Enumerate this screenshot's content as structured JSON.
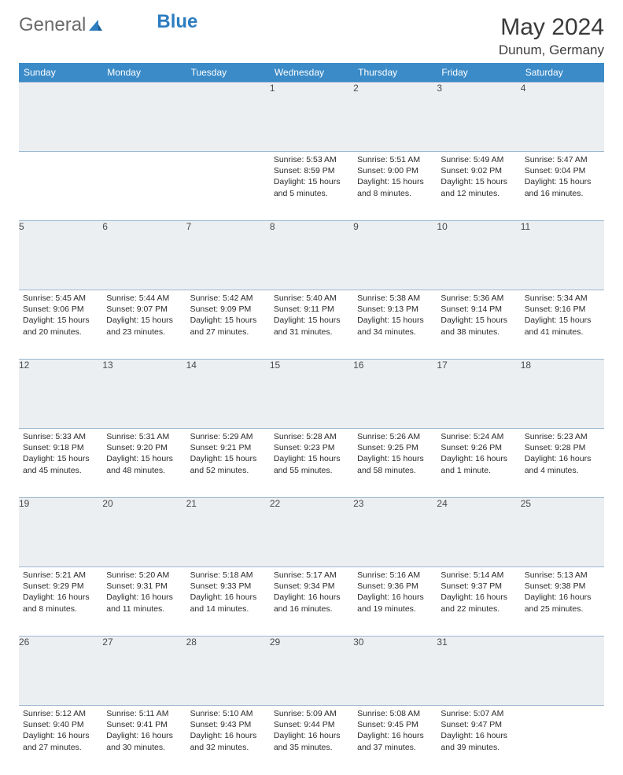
{
  "logo": {
    "text1": "General",
    "text2": "Blue"
  },
  "title": "May 2024",
  "location": "Dunum, Germany",
  "headerColor": "#3b8bc8",
  "headerTextColor": "#ffffff",
  "daynumBg": "#eceff2",
  "borderColor": "#9cb8d0",
  "textColor": "#2a2a2a",
  "daynames": [
    "Sunday",
    "Monday",
    "Tuesday",
    "Wednesday",
    "Thursday",
    "Friday",
    "Saturday"
  ],
  "weeks": [
    [
      null,
      null,
      null,
      {
        "n": "1",
        "sr": "Sunrise: 5:53 AM",
        "ss": "Sunset: 8:59 PM",
        "dl": "Daylight: 15 hours and 5 minutes."
      },
      {
        "n": "2",
        "sr": "Sunrise: 5:51 AM",
        "ss": "Sunset: 9:00 PM",
        "dl": "Daylight: 15 hours and 8 minutes."
      },
      {
        "n": "3",
        "sr": "Sunrise: 5:49 AM",
        "ss": "Sunset: 9:02 PM",
        "dl": "Daylight: 15 hours and 12 minutes."
      },
      {
        "n": "4",
        "sr": "Sunrise: 5:47 AM",
        "ss": "Sunset: 9:04 PM",
        "dl": "Daylight: 15 hours and 16 minutes."
      }
    ],
    [
      {
        "n": "5",
        "sr": "Sunrise: 5:45 AM",
        "ss": "Sunset: 9:06 PM",
        "dl": "Daylight: 15 hours and 20 minutes."
      },
      {
        "n": "6",
        "sr": "Sunrise: 5:44 AM",
        "ss": "Sunset: 9:07 PM",
        "dl": "Daylight: 15 hours and 23 minutes."
      },
      {
        "n": "7",
        "sr": "Sunrise: 5:42 AM",
        "ss": "Sunset: 9:09 PM",
        "dl": "Daylight: 15 hours and 27 minutes."
      },
      {
        "n": "8",
        "sr": "Sunrise: 5:40 AM",
        "ss": "Sunset: 9:11 PM",
        "dl": "Daylight: 15 hours and 31 minutes."
      },
      {
        "n": "9",
        "sr": "Sunrise: 5:38 AM",
        "ss": "Sunset: 9:13 PM",
        "dl": "Daylight: 15 hours and 34 minutes."
      },
      {
        "n": "10",
        "sr": "Sunrise: 5:36 AM",
        "ss": "Sunset: 9:14 PM",
        "dl": "Daylight: 15 hours and 38 minutes."
      },
      {
        "n": "11",
        "sr": "Sunrise: 5:34 AM",
        "ss": "Sunset: 9:16 PM",
        "dl": "Daylight: 15 hours and 41 minutes."
      }
    ],
    [
      {
        "n": "12",
        "sr": "Sunrise: 5:33 AM",
        "ss": "Sunset: 9:18 PM",
        "dl": "Daylight: 15 hours and 45 minutes."
      },
      {
        "n": "13",
        "sr": "Sunrise: 5:31 AM",
        "ss": "Sunset: 9:20 PM",
        "dl": "Daylight: 15 hours and 48 minutes."
      },
      {
        "n": "14",
        "sr": "Sunrise: 5:29 AM",
        "ss": "Sunset: 9:21 PM",
        "dl": "Daylight: 15 hours and 52 minutes."
      },
      {
        "n": "15",
        "sr": "Sunrise: 5:28 AM",
        "ss": "Sunset: 9:23 PM",
        "dl": "Daylight: 15 hours and 55 minutes."
      },
      {
        "n": "16",
        "sr": "Sunrise: 5:26 AM",
        "ss": "Sunset: 9:25 PM",
        "dl": "Daylight: 15 hours and 58 minutes."
      },
      {
        "n": "17",
        "sr": "Sunrise: 5:24 AM",
        "ss": "Sunset: 9:26 PM",
        "dl": "Daylight: 16 hours and 1 minute."
      },
      {
        "n": "18",
        "sr": "Sunrise: 5:23 AM",
        "ss": "Sunset: 9:28 PM",
        "dl": "Daylight: 16 hours and 4 minutes."
      }
    ],
    [
      {
        "n": "19",
        "sr": "Sunrise: 5:21 AM",
        "ss": "Sunset: 9:29 PM",
        "dl": "Daylight: 16 hours and 8 minutes."
      },
      {
        "n": "20",
        "sr": "Sunrise: 5:20 AM",
        "ss": "Sunset: 9:31 PM",
        "dl": "Daylight: 16 hours and 11 minutes."
      },
      {
        "n": "21",
        "sr": "Sunrise: 5:18 AM",
        "ss": "Sunset: 9:33 PM",
        "dl": "Daylight: 16 hours and 14 minutes."
      },
      {
        "n": "22",
        "sr": "Sunrise: 5:17 AM",
        "ss": "Sunset: 9:34 PM",
        "dl": "Daylight: 16 hours and 16 minutes."
      },
      {
        "n": "23",
        "sr": "Sunrise: 5:16 AM",
        "ss": "Sunset: 9:36 PM",
        "dl": "Daylight: 16 hours and 19 minutes."
      },
      {
        "n": "24",
        "sr": "Sunrise: 5:14 AM",
        "ss": "Sunset: 9:37 PM",
        "dl": "Daylight: 16 hours and 22 minutes."
      },
      {
        "n": "25",
        "sr": "Sunrise: 5:13 AM",
        "ss": "Sunset: 9:38 PM",
        "dl": "Daylight: 16 hours and 25 minutes."
      }
    ],
    [
      {
        "n": "26",
        "sr": "Sunrise: 5:12 AM",
        "ss": "Sunset: 9:40 PM",
        "dl": "Daylight: 16 hours and 27 minutes."
      },
      {
        "n": "27",
        "sr": "Sunrise: 5:11 AM",
        "ss": "Sunset: 9:41 PM",
        "dl": "Daylight: 16 hours and 30 minutes."
      },
      {
        "n": "28",
        "sr": "Sunrise: 5:10 AM",
        "ss": "Sunset: 9:43 PM",
        "dl": "Daylight: 16 hours and 32 minutes."
      },
      {
        "n": "29",
        "sr": "Sunrise: 5:09 AM",
        "ss": "Sunset: 9:44 PM",
        "dl": "Daylight: 16 hours and 35 minutes."
      },
      {
        "n": "30",
        "sr": "Sunrise: 5:08 AM",
        "ss": "Sunset: 9:45 PM",
        "dl": "Daylight: 16 hours and 37 minutes."
      },
      {
        "n": "31",
        "sr": "Sunrise: 5:07 AM",
        "ss": "Sunset: 9:47 PM",
        "dl": "Daylight: 16 hours and 39 minutes."
      },
      null
    ]
  ]
}
